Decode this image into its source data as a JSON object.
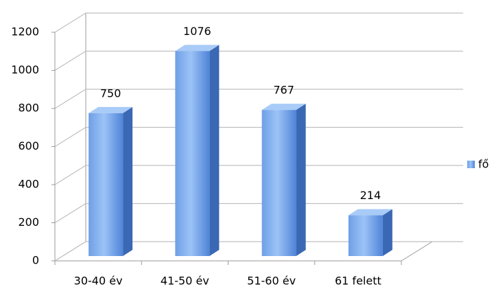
{
  "chart_data": {
    "type": "bar",
    "categories": [
      "30-40 év",
      "41-50 év",
      "51-60 év",
      "61 felett"
    ],
    "series": [
      {
        "name": "fő",
        "color": "#5b8fdf",
        "values": [
          750,
          1076,
          767,
          214
        ]
      }
    ],
    "ylim": [
      0,
      1200
    ],
    "yticks": [
      0,
      200,
      400,
      600,
      800,
      1000,
      1200
    ],
    "grid": true,
    "legend": "right"
  }
}
